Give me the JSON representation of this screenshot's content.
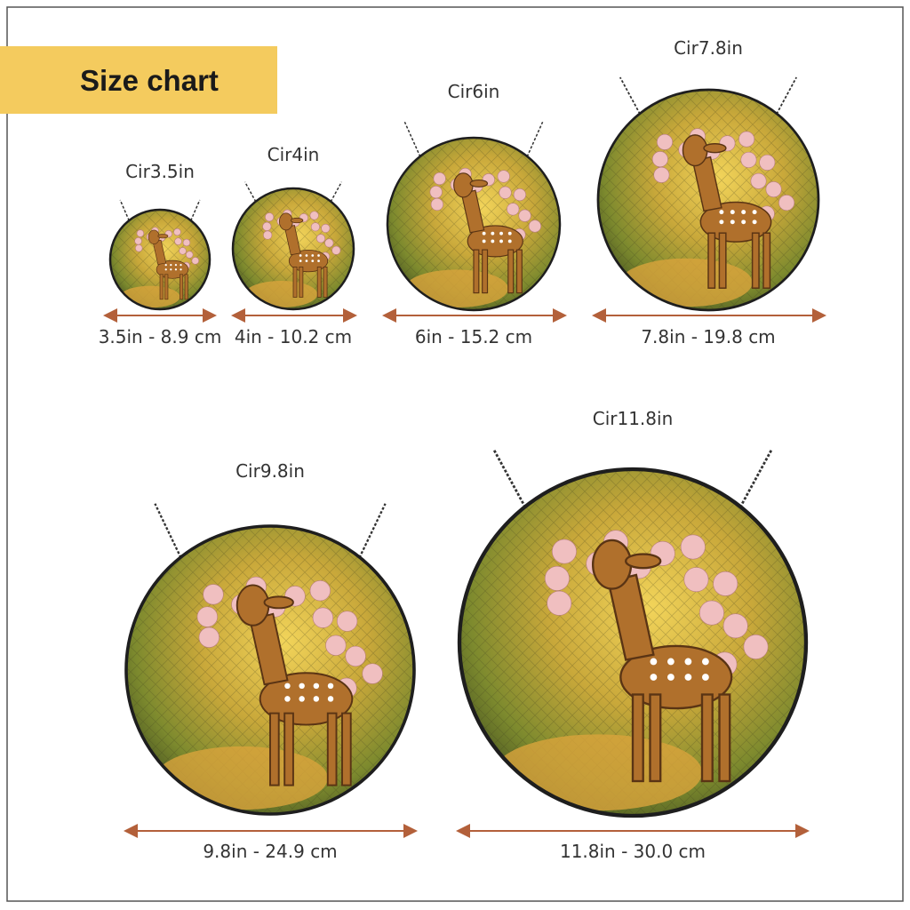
{
  "header": {
    "title": "Size chart"
  },
  "items": [
    {
      "label": "Cir3.5in",
      "size": "3.5in - 8.9 cm"
    },
    {
      "label": "Cir4in",
      "size": "4in - 10.2 cm"
    },
    {
      "label": "Cir6in",
      "size": "6in - 15.2 cm"
    },
    {
      "label": "Cir7.8in",
      "size": "7.8in - 19.8 cm"
    },
    {
      "label": "Cir9.8in",
      "size": "9.8in - 24.9 cm"
    },
    {
      "label": "Cir11.8in",
      "size": "11.8in - 30.0 cm"
    }
  ]
}
